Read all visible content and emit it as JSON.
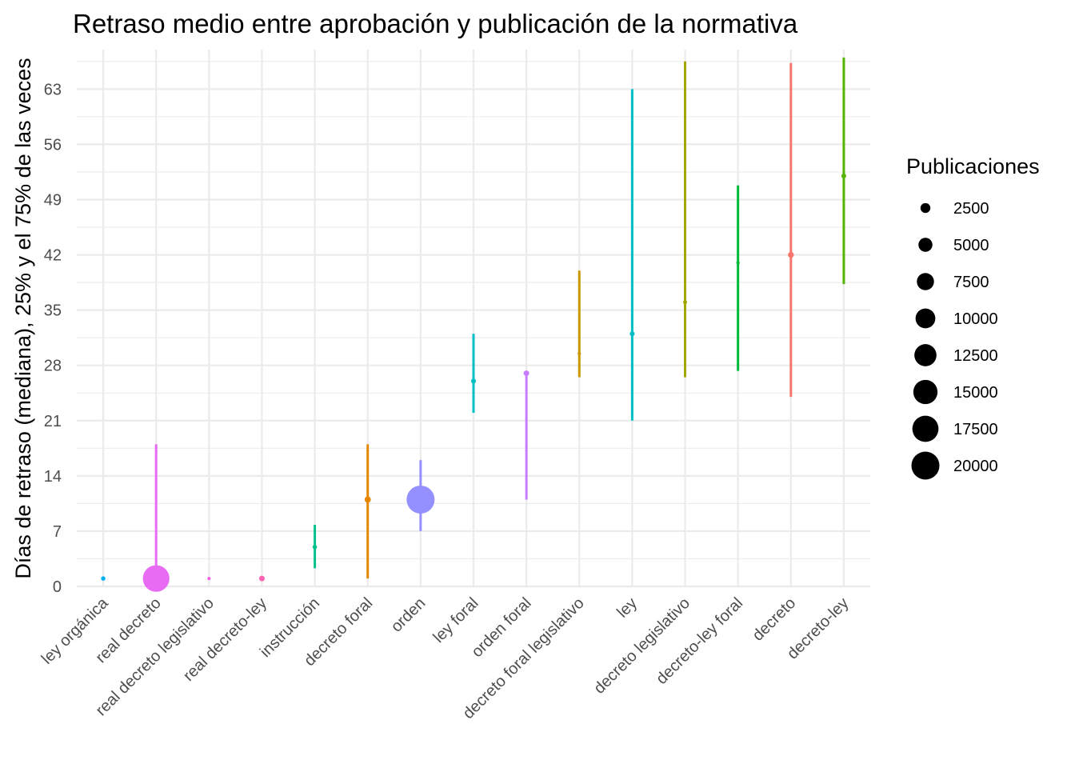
{
  "chart_data": {
    "type": "scatter",
    "title": "Retraso medio entre aprobación y publicación de la normativa",
    "ylabel": "Días de retraso (mediana), 25% y el 75% de las veces",
    "xlabel": "",
    "ylim": [
      0,
      68
    ],
    "yticks": [
      0,
      7,
      14,
      21,
      28,
      35,
      42,
      49,
      56,
      63
    ],
    "grid": true,
    "legend": {
      "title": "Publicaciones",
      "placement": "right",
      "values": [
        2500,
        5000,
        7500,
        10000,
        12500,
        15000,
        17500,
        20000
      ],
      "labels": [
        "2500",
        "5000",
        "7500",
        "10000",
        "12500",
        "15000",
        "17500",
        "20000"
      ]
    },
    "categories": [
      "ley orgánica",
      "real decreto",
      "real decreto legislativo",
      "real decreto-ley",
      "instrucción",
      "decreto foral",
      "orden",
      "ley foral",
      "orden foral",
      "decreto foral legislativo",
      "ley",
      "decreto legislativo",
      "decreto-ley foral",
      "decreto",
      "decreto-ley"
    ],
    "points": [
      {
        "category": "ley orgánica",
        "median": 1,
        "q25": 1,
        "q75": 1,
        "count": 500,
        "color": "#00B0F6"
      },
      {
        "category": "real decreto",
        "median": 1,
        "q25": 0,
        "q75": 18,
        "count": 18000,
        "color": "#E76BF3"
      },
      {
        "category": "real decreto legislativo",
        "median": 1,
        "q25": 1,
        "q75": 1,
        "count": 300,
        "color": "#F564E3"
      },
      {
        "category": "real decreto-ley",
        "median": 1,
        "q25": 1,
        "q75": 1,
        "count": 800,
        "color": "#FF64B0"
      },
      {
        "category": "instrucción",
        "median": 5,
        "q25": 2.3,
        "q75": 7.8,
        "count": 500,
        "color": "#00C08B"
      },
      {
        "category": "decreto foral",
        "median": 11,
        "q25": 1,
        "q75": 18,
        "count": 1000,
        "color": "#E58700"
      },
      {
        "category": "orden",
        "median": 11,
        "q25": 7,
        "q75": 16,
        "count": 20000,
        "color": "#9590FF"
      },
      {
        "category": "ley foral",
        "median": 26,
        "q25": 22,
        "q75": 32,
        "count": 600,
        "color": "#00BFC4"
      },
      {
        "category": "orden foral",
        "median": 27,
        "q25": 11,
        "q75": 27,
        "count": 800,
        "color": "#C77CFF"
      },
      {
        "category": "decreto foral legislativo",
        "median": 29.5,
        "q25": 26.5,
        "q75": 40,
        "count": 300,
        "color": "#C99800"
      },
      {
        "category": "ley",
        "median": 32,
        "q25": 21,
        "q75": 63,
        "count": 600,
        "color": "#00BFC4"
      },
      {
        "category": "decreto legislativo",
        "median": 36,
        "q25": 26.5,
        "q75": 66.5,
        "count": 400,
        "color": "#A3A500"
      },
      {
        "category": "decreto-ley foral",
        "median": 41,
        "q25": 27.3,
        "q75": 50.8,
        "count": 300,
        "color": "#00BA38"
      },
      {
        "category": "decreto",
        "median": 42,
        "q25": 24,
        "q75": 66.3,
        "count": 900,
        "color": "#F8766D"
      },
      {
        "category": "decreto-ley",
        "median": 52,
        "q25": 38.3,
        "q75": 67,
        "count": 600,
        "color": "#53B400"
      }
    ]
  }
}
